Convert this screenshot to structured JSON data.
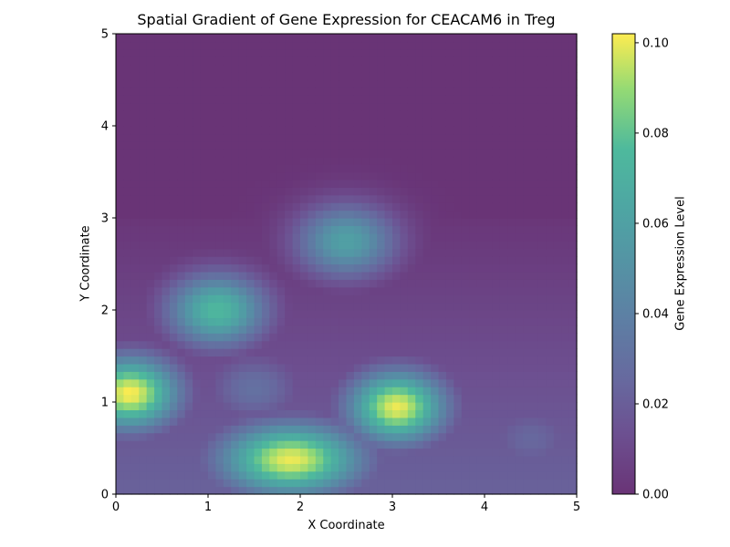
{
  "chart_data": {
    "type": "heatmap",
    "title": "Spatial Gradient of Gene Expression for CEACAM6 in Treg",
    "xlabel": "X Coordinate",
    "ylabel": "Y Coordinate",
    "colorbar_label": "Gene Expression Level",
    "colormap": "viridis",
    "alpha": 0.8,
    "xlim": [
      0,
      5
    ],
    "ylim": [
      0,
      5
    ],
    "x_ticks": [
      "0",
      "1",
      "2",
      "3",
      "4",
      "5"
    ],
    "y_ticks": [
      "0",
      "1",
      "2",
      "3",
      "4",
      "5"
    ],
    "color_range": [
      0.0,
      0.102
    ],
    "colorbar_ticks": [
      "0.00",
      "0.02",
      "0.04",
      "0.06",
      "0.08",
      "0.10"
    ],
    "colorbar_tick_values": [
      0.0,
      0.02,
      0.04,
      0.06,
      0.08,
      0.1
    ],
    "grid": false,
    "hotspots": [
      {
        "x": 0.15,
        "y": 1.1,
        "value": 0.102
      },
      {
        "x": 1.1,
        "y": 2.0,
        "value": 0.075
      },
      {
        "x": 2.5,
        "y": 2.75,
        "value": 0.06
      },
      {
        "x": 3.05,
        "y": 0.95,
        "value": 0.1
      },
      {
        "x": 1.9,
        "y": 0.38,
        "value": 0.1
      },
      {
        "x": 1.5,
        "y": 1.15,
        "value": 0.03
      },
      {
        "x": 4.5,
        "y": 0.6,
        "value": 0.025
      }
    ]
  }
}
